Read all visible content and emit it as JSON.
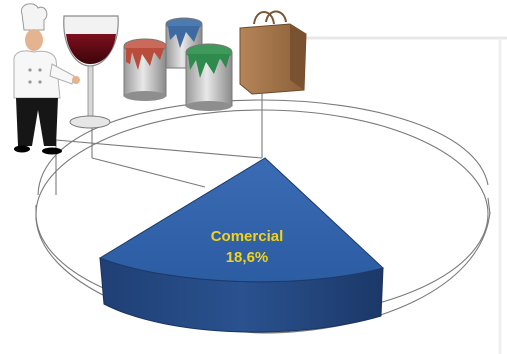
{
  "chart_data": {
    "type": "pie",
    "style": "3d-exploded",
    "title": "",
    "slices": [
      {
        "label": "Comercial",
        "value": 18.6,
        "value_label": "18,6%",
        "highlighted": true
      }
    ],
    "highlight_color": "#2f5fa6",
    "label_color": "#f2d21a",
    "outline_color": "#7a7a7a",
    "decor_icons": [
      "chef-icon",
      "wine-glass-icon",
      "paint-can-red-icon",
      "paint-can-blue-icon",
      "paint-can-green-icon",
      "shopping-bag-icon"
    ]
  }
}
